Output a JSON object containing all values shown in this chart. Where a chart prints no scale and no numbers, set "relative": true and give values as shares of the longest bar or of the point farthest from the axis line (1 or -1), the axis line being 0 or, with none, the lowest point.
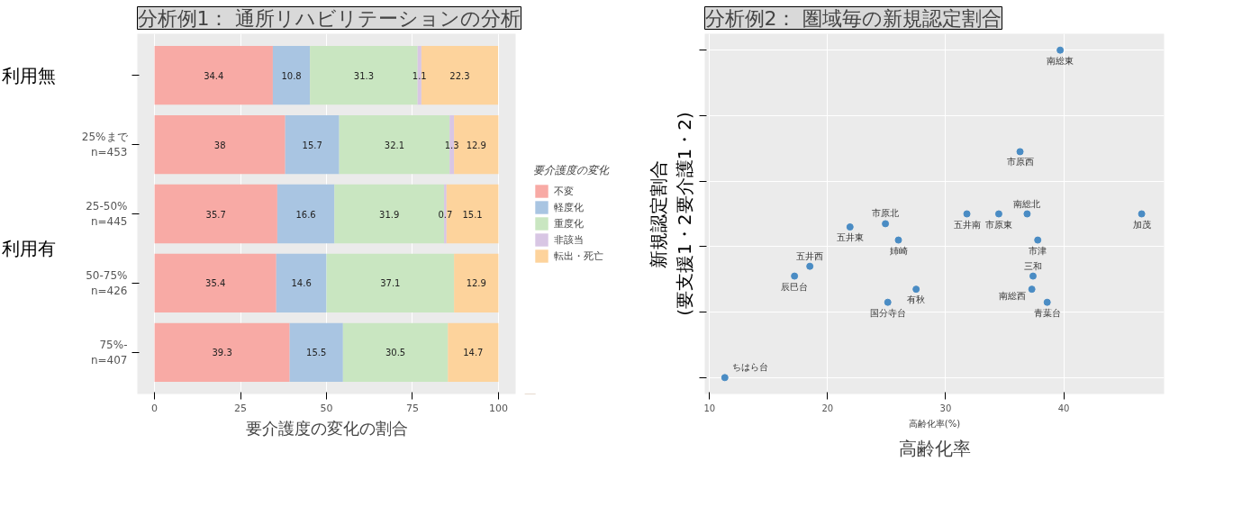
{
  "chart_data": [
    {
      "type": "bar",
      "orientation": "horizontal",
      "stacked": true,
      "title": "分析例1： 通所リハビリテーションの分析",
      "xlabel": "要介護度の変化の割合",
      "legend_title": "要介護度の変化",
      "legend": "right",
      "grid": true,
      "data_labels": true,
      "categories": [
        null,
        "25%まで\nn=453",
        "25-50%\nn=445",
        "50-75%\nn=426",
        "75%-\nn=407"
      ],
      "series": [
        {
          "name": "不変",
          "color": "#f8aaa5",
          "values": [
            34.4,
            38,
            35.7,
            35.4,
            39.3
          ]
        },
        {
          "name": "軽度化",
          "color": "#a9c5e2",
          "values": [
            10.8,
            15.7,
            16.6,
            14.6,
            15.5
          ]
        },
        {
          "name": "重度化",
          "color": "#c9e6c1",
          "values": [
            31.3,
            32.1,
            31.9,
            37.1,
            30.5
          ]
        },
        {
          "name": "非該当",
          "color": "#d8c6e4",
          "values": [
            1.1,
            1.3,
            0.7,
            null,
            null
          ]
        },
        {
          "name": "転出・死亡",
          "color": "#fdd39c",
          "values": [
            22.3,
            12.9,
            15.1,
            12.9,
            14.7
          ]
        }
      ],
      "xlim": [
        -5,
        105
      ],
      "xticks": [
        0,
        25,
        50,
        75,
        100
      ],
      "annotations": [
        "利用無",
        "利用有"
      ]
    },
    {
      "type": "scatter",
      "title": "分析例2： 圏域毎の新規認定割合",
      "xlabel": "高齢化率(%)",
      "ylabel": "新規認定割合\n(要支援1・2要介護1・2)",
      "relative": true,
      "grid": true,
      "marker": "circle",
      "color": "#4a8cc4",
      "x": [
        11.3,
        17.2,
        18.5,
        21.9,
        24.9,
        26.0,
        25.1,
        27.5,
        31.8,
        34.5,
        36.9,
        46.6,
        37.8,
        37.4,
        37.3,
        38.6,
        36.3,
        39.7
      ],
      "values": [
        0,
        0.31,
        0.34,
        0.46,
        0.47,
        0.42,
        0.23,
        0.27,
        0.5,
        0.5,
        0.5,
        0.5,
        0.42,
        0.31,
        0.27,
        0.23,
        0.69,
        1
      ],
      "xlim": [
        9.6,
        48.5
      ],
      "xticks": [
        10,
        20,
        30,
        40
      ],
      "annotations": [
        "高齢化率",
        {
          "text": "ちはら台",
          "x": 11.3,
          "y": 0
        },
        {
          "text": "辰巳台",
          "x": 17.2,
          "y": 0.31
        },
        {
          "text": "五井西",
          "x": 18.5,
          "y": 0.34
        },
        {
          "text": "五井東",
          "x": 21.9,
          "y": 0.46
        },
        {
          "text": "市原北",
          "x": 24.9,
          "y": 0.47
        },
        {
          "text": "姉崎",
          "x": 26.0,
          "y": 0.42
        },
        {
          "text": "国分寺台",
          "x": 25.1,
          "y": 0.23
        },
        {
          "text": "有秋",
          "x": 27.5,
          "y": 0.27
        },
        {
          "text": "五井南",
          "x": 31.8,
          "y": 0.5
        },
        {
          "text": "市原東",
          "x": 34.5,
          "y": 0.5
        },
        {
          "text": "南総北",
          "x": 36.9,
          "y": 0.5
        },
        {
          "text": "加茂",
          "x": 46.6,
          "y": 0.5
        },
        {
          "text": "市津",
          "x": 37.8,
          "y": 0.42
        },
        {
          "text": "三和",
          "x": 37.4,
          "y": 0.31
        },
        {
          "text": "南総西",
          "x": 37.3,
          "y": 0.27
        },
        {
          "text": "青葉台",
          "x": 38.6,
          "y": 0.23
        },
        {
          "text": "市原西",
          "x": 36.3,
          "y": 0.69
        },
        {
          "text": "南総東",
          "x": 39.7,
          "y": 1
        }
      ]
    }
  ]
}
